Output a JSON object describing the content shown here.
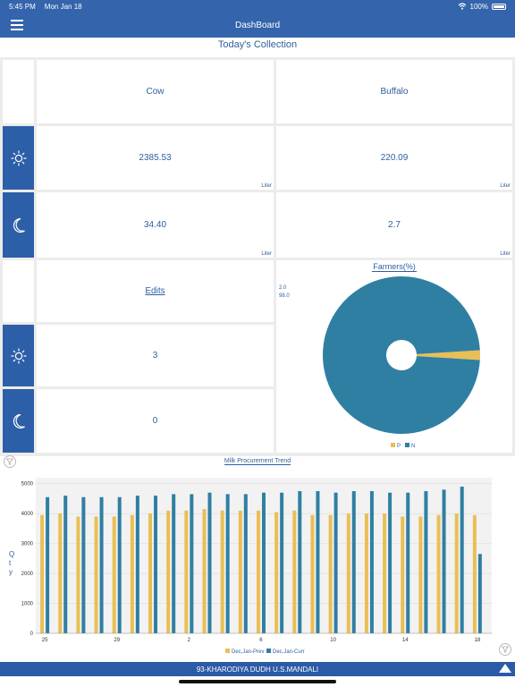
{
  "status": {
    "time": "5:45 PM",
    "date": "Mon Jan 18",
    "battery": "100%"
  },
  "nav": {
    "title": "DashBoard"
  },
  "section_title": "Today's Collection",
  "collection": {
    "headers": {
      "cow": "Cow",
      "buffalo": "Buffalo"
    },
    "morning": {
      "cow": "2385.53",
      "buffalo": "220.09"
    },
    "evening": {
      "cow": "34.40",
      "buffalo": "2.7"
    },
    "unit": "Liter"
  },
  "edits": {
    "title": "Edits",
    "morning": "3",
    "evening": "0"
  },
  "icons": {
    "morning": "sun-icon",
    "evening": "moon-icon",
    "menu": "hamburger-icon",
    "filter": "filter-icon"
  },
  "colors": {
    "brand": "#3464ab",
    "p": "#e9bf55",
    "n": "#2f7fa3"
  },
  "chart_data": [
    {
      "type": "pie",
      "title": "Farmers(%)",
      "categories": [
        "P",
        "N"
      ],
      "values": [
        2.0,
        98.0
      ],
      "value_labels": [
        "2.0",
        "98.0"
      ],
      "legend": "bottom-center",
      "donut": true
    },
    {
      "type": "bar",
      "title": "Milk Procurement Trend",
      "ylabel": "Qty",
      "ylim": [
        0,
        5200
      ],
      "yticks": [
        "0",
        "1000",
        "2000",
        "3000",
        "4000",
        "5000"
      ],
      "x_tick_labels": [
        "25",
        "29",
        "2",
        "6",
        "10",
        "14",
        "18"
      ],
      "x_tick_index": [
        0,
        4,
        8,
        12,
        16,
        20,
        24
      ],
      "grid": true,
      "legend": "bottom-center",
      "series": [
        {
          "name": "Dec,Jan-Prev",
          "values": [
            3950,
            4000,
            3900,
            3900,
            3900,
            3950,
            4000,
            4100,
            4100,
            4150,
            4100,
            4100,
            4100,
            4050,
            4100,
            3950,
            3950,
            4000,
            4000,
            4000,
            3900,
            3900,
            3950,
            4000,
            3950
          ]
        },
        {
          "name": "Dec,Jan-Curr",
          "values": [
            4550,
            4600,
            4550,
            4550,
            4550,
            4600,
            4600,
            4650,
            4650,
            4700,
            4650,
            4650,
            4700,
            4700,
            4750,
            4750,
            4700,
            4750,
            4750,
            4700,
            4700,
            4750,
            4800,
            4900,
            2650
          ]
        }
      ]
    }
  ],
  "footer": {
    "label": "93-KHARODIYA DUDH U.S.MANDALI"
  }
}
